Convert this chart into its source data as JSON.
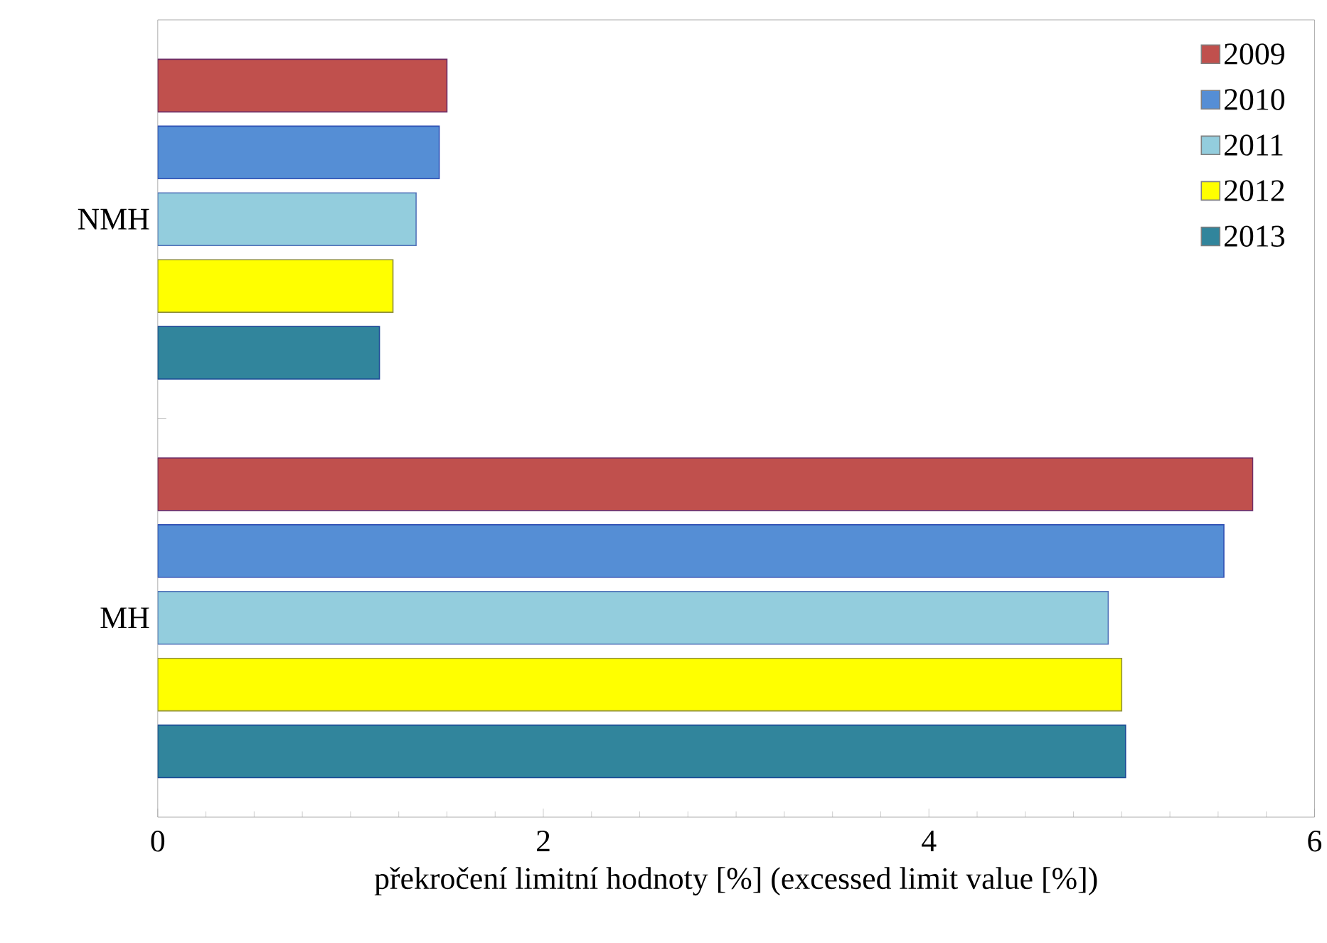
{
  "chart_data": {
    "type": "bar",
    "orientation": "horizontal",
    "categories": [
      "NMH",
      "MH"
    ],
    "series": [
      {
        "name": "2009",
        "color": "#c0504d",
        "values": [
          1.5,
          5.68
        ]
      },
      {
        "name": "2010",
        "color": "#558ed5",
        "values": [
          1.46,
          5.53
        ]
      },
      {
        "name": "2011",
        "color": "#93cddd",
        "values": [
          1.34,
          4.93
        ]
      },
      {
        "name": "2012",
        "color": "#ffff00",
        "values": [
          1.22,
          5.0
        ]
      },
      {
        "name": "2013",
        "color": "#31859c",
        "values": [
          1.15,
          5.02
        ]
      }
    ],
    "xlabel": "překročení limitní hodnoty [%] (excessed limit value [%])",
    "xlim": [
      0,
      6
    ],
    "xticks": [
      0,
      2,
      4,
      6
    ],
    "legend": "top right",
    "grid": false
  }
}
